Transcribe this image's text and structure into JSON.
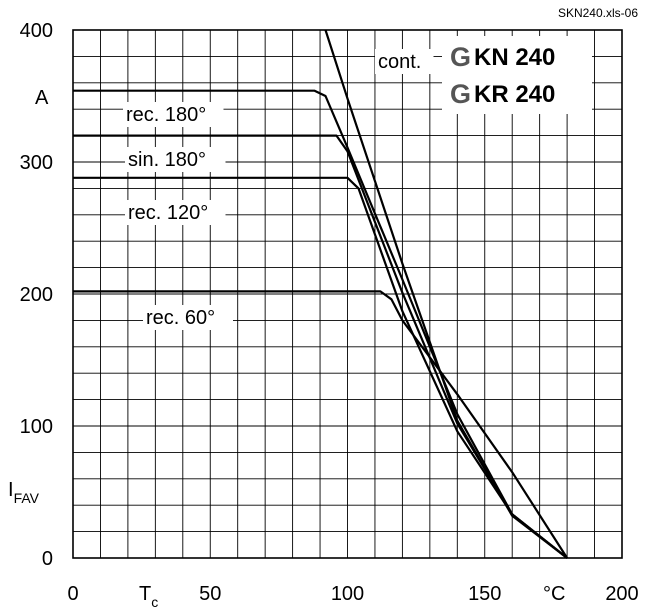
{
  "file_tag": "SKN240.xls-06",
  "devices": [
    {
      "prefix": "G",
      "name": "KN 240"
    },
    {
      "prefix": "G",
      "name": "KR 240"
    }
  ],
  "axis": {
    "y_symbol": "I",
    "y_subscript": "FAV",
    "y_unit": "A",
    "x_symbol": "T",
    "x_subscript": "c",
    "x_unit": "°C"
  },
  "chart_data": {
    "type": "line",
    "xlim": [
      0,
      200
    ],
    "ylim": [
      0,
      400
    ],
    "x_ticks": [
      0,
      50,
      100,
      150,
      200
    ],
    "x_tick_labels": [
      "0",
      "50",
      "100",
      "150",
      "200"
    ],
    "y_ticks": [
      0,
      100,
      200,
      300,
      400
    ],
    "y_tick_labels": [
      "0",
      "100",
      "200",
      "300",
      "400"
    ],
    "grid": true,
    "series": [
      {
        "name": "cont.",
        "points": [
          [
            92,
            400
          ],
          [
            100,
            348
          ],
          [
            120,
            223
          ],
          [
            140,
            104
          ],
          [
            160,
            32
          ],
          [
            180,
            0
          ]
        ]
      },
      {
        "name": "rec. 180°",
        "points": [
          [
            0,
            354
          ],
          [
            88,
            354
          ],
          [
            92,
            350
          ],
          [
            100,
            311
          ],
          [
            120,
            211
          ],
          [
            140,
            109
          ],
          [
            160,
            33
          ],
          [
            180,
            0
          ]
        ]
      },
      {
        "name": "sin. 180°",
        "points": [
          [
            0,
            320
          ],
          [
            96,
            320
          ],
          [
            100,
            308
          ],
          [
            120,
            201
          ],
          [
            140,
            102
          ],
          [
            160,
            33
          ],
          [
            180,
            0
          ]
        ]
      },
      {
        "name": "rec. 120°",
        "points": [
          [
            0,
            288
          ],
          [
            100,
            288
          ],
          [
            104,
            280
          ],
          [
            120,
            187
          ],
          [
            140,
            96
          ],
          [
            160,
            33
          ],
          [
            180,
            0
          ]
        ]
      },
      {
        "name": "rec. 60°",
        "points": [
          [
            0,
            202
          ],
          [
            112,
            202
          ],
          [
            116,
            196
          ],
          [
            120,
            180
          ],
          [
            140,
            124
          ],
          [
            160,
            65
          ],
          [
            180,
            0
          ]
        ]
      }
    ]
  }
}
